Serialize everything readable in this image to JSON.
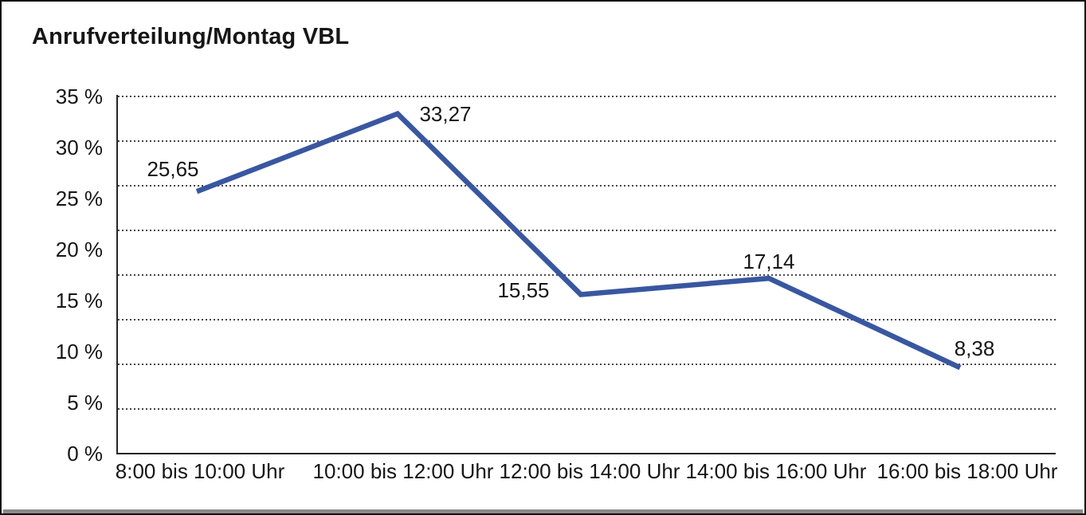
{
  "title": "Anrufverteilung/Montag VBL",
  "colors": {
    "line": "#3957A0",
    "grid_dot": "#474747",
    "axis": "#262626",
    "text": "#161616",
    "window_edge": "#8a8a8a",
    "background": "#ffffff"
  },
  "chart_data": {
    "type": "line",
    "title": "Anrufverteilung/Montag VBL",
    "categories": [
      "8:00 bis 10:00 Uhr",
      "10:00 bis 12:00 Uhr",
      "12:00 bis 14:00 Uhr",
      "14:00 bis 16:00 Uhr",
      "16:00 bis 18:00 Uhr"
    ],
    "values": [
      25.65,
      33.27,
      15.55,
      17.14,
      8.38
    ],
    "value_labels": [
      "25,65",
      "33,27",
      "15,55",
      "17,14",
      "8,38"
    ],
    "y_tick_labels": [
      "35 %",
      "30 %",
      "25 %",
      "20 %",
      "15 %",
      "10 %",
      "5 %",
      "0 %"
    ],
    "ylim": [
      0,
      35
    ],
    "y_unit": "%",
    "xlabel": "",
    "ylabel": "",
    "grid": "horizontal-dotted",
    "legend": "none",
    "markers": "none",
    "line_color": "#3957A0"
  }
}
